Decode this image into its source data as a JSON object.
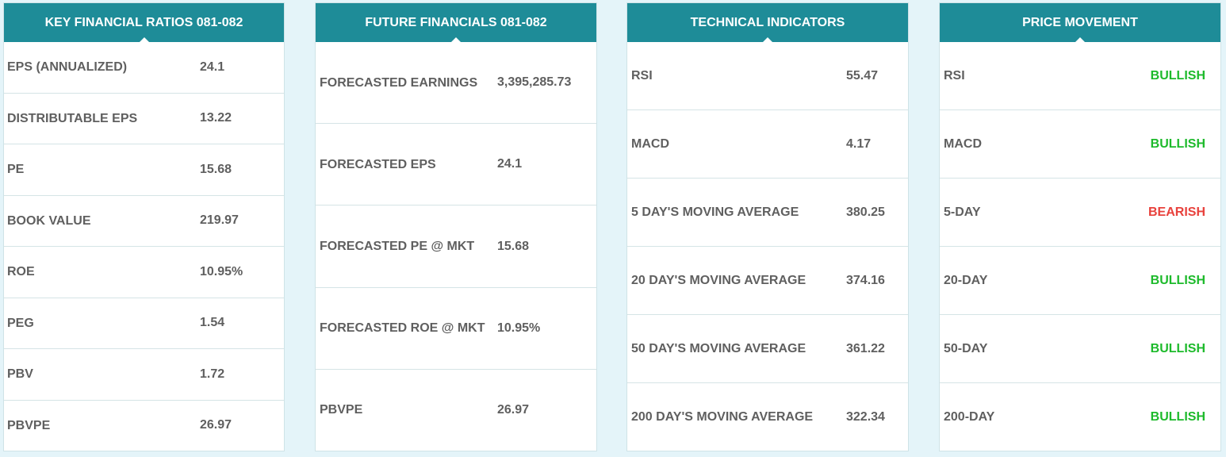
{
  "key_ratios": {
    "title": "KEY FINANCIAL RATIOS 081-082",
    "rows": [
      {
        "label": "EPS (ANNUALIZED)",
        "value": "24.1"
      },
      {
        "label": "DISTRIBUTABLE EPS",
        "value": "13.22"
      },
      {
        "label": "PE",
        "value": "15.68"
      },
      {
        "label": "BOOK VALUE",
        "value": "219.97"
      },
      {
        "label": "ROE",
        "value": "10.95%"
      },
      {
        "label": "PEG",
        "value": "1.54"
      },
      {
        "label": "PBV",
        "value": "1.72"
      },
      {
        "label": "PBVPE",
        "value": "26.97"
      }
    ]
  },
  "future_financials": {
    "title": "FUTURE FINANCIALS 081-082",
    "rows": [
      {
        "label": "FORECASTED EARNINGS",
        "value": "3,395,285.73"
      },
      {
        "label": "FORECASTED EPS",
        "value": "24.1"
      },
      {
        "label": "FORECASTED PE @ MKT",
        "value": "15.68"
      },
      {
        "label": "FORECASTED ROE @ MKT",
        "value": "10.95%"
      },
      {
        "label": "PBVPE",
        "value": "26.97"
      }
    ]
  },
  "technical_indicators": {
    "title": "TECHNICAL INDICATORS",
    "rows": [
      {
        "label": "RSI",
        "value": "55.47"
      },
      {
        "label": "MACD",
        "value": "4.17"
      },
      {
        "label": "5 DAY'S MOVING AVERAGE",
        "value": "380.25"
      },
      {
        "label": "20 DAY'S MOVING AVERAGE",
        "value": "374.16"
      },
      {
        "label": "50 DAY'S MOVING AVERAGE",
        "value": "361.22"
      },
      {
        "label": "200 DAY'S MOVING AVERAGE",
        "value": "322.34"
      }
    ]
  },
  "price_movement": {
    "title": "PRICE MOVEMENT",
    "rows": [
      {
        "label": "RSI",
        "value": "BULLISH",
        "status": "bullish"
      },
      {
        "label": "MACD",
        "value": "BULLISH",
        "status": "bullish"
      },
      {
        "label": "5-DAY",
        "value": "BEARISH",
        "status": "bearish"
      },
      {
        "label": "20-DAY",
        "value": "BULLISH",
        "status": "bullish"
      },
      {
        "label": "50-DAY",
        "value": "BULLISH",
        "status": "bullish"
      },
      {
        "label": "200-DAY",
        "value": "BULLISH",
        "status": "bullish"
      }
    ]
  },
  "colors": {
    "header_bg": "#1e8c98",
    "bullish": "#1dba2b",
    "bearish": "#e8413c",
    "text": "#5f5f5f"
  }
}
